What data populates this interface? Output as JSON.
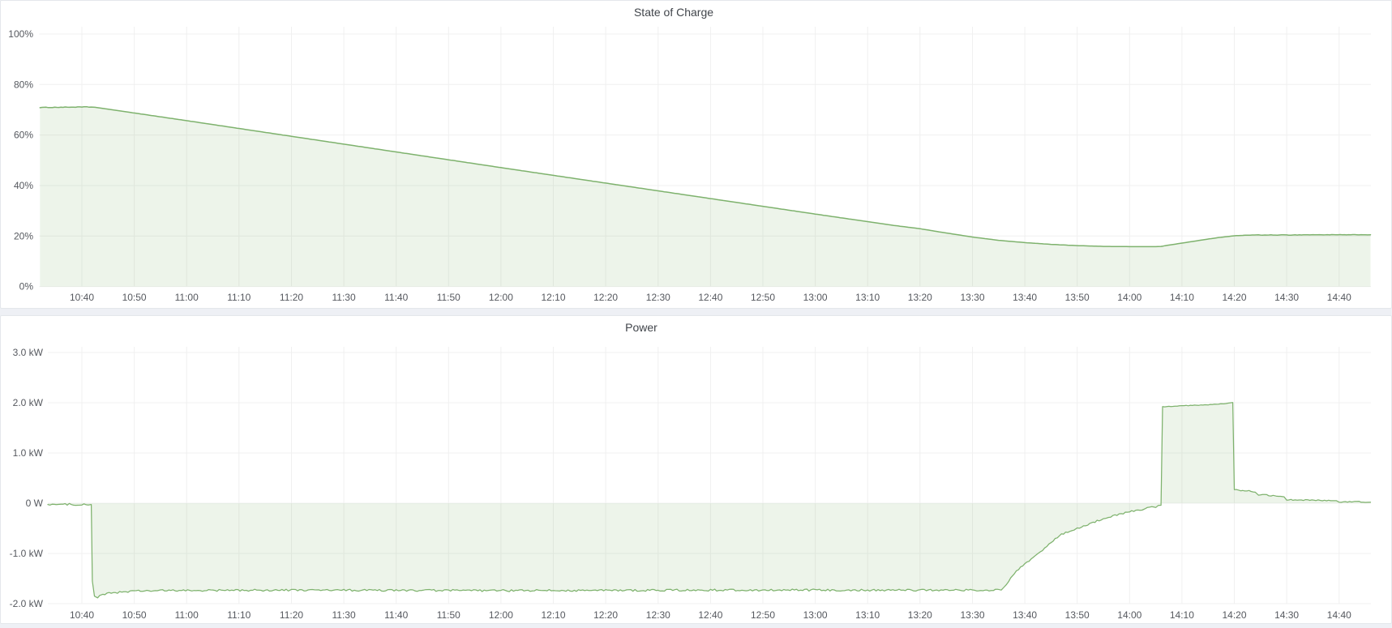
{
  "colors": {
    "line": "#7eb26d",
    "fill": "rgba(126,178,109,0.14)",
    "grid": "#f0f0f0",
    "tick_text": "#55585e",
    "title_text": "#41454b",
    "panel_bg": "#ffffff",
    "panel_border": "#e4e7eb",
    "page_bg": "#eef0f5"
  },
  "chart_data": [
    {
      "type": "area",
      "title": "State of Charge",
      "ylabel": "",
      "xlabel": "",
      "y_unit": "percent",
      "ylim": [
        0,
        103
      ],
      "x_range_minutes_after_10_00": [
        32,
        286
      ],
      "grid": true,
      "legend": "none",
      "y_ticks": [
        {
          "v": 100,
          "label": "100%"
        },
        {
          "v": 80,
          "label": "80%"
        },
        {
          "v": 60,
          "label": "60%"
        },
        {
          "v": 40,
          "label": "40%"
        },
        {
          "v": 20,
          "label": "20%"
        },
        {
          "v": 0,
          "label": "0%"
        }
      ],
      "x_ticks": [
        {
          "m": 40,
          "label": "10:40"
        },
        {
          "m": 50,
          "label": "10:50"
        },
        {
          "m": 60,
          "label": "11:00"
        },
        {
          "m": 70,
          "label": "11:10"
        },
        {
          "m": 80,
          "label": "11:20"
        },
        {
          "m": 90,
          "label": "11:30"
        },
        {
          "m": 100,
          "label": "11:40"
        },
        {
          "m": 110,
          "label": "11:50"
        },
        {
          "m": 120,
          "label": "12:00"
        },
        {
          "m": 130,
          "label": "12:10"
        },
        {
          "m": 140,
          "label": "12:20"
        },
        {
          "m": 150,
          "label": "12:30"
        },
        {
          "m": 160,
          "label": "12:40"
        },
        {
          "m": 170,
          "label": "12:50"
        },
        {
          "m": 180,
          "label": "13:00"
        },
        {
          "m": 190,
          "label": "13:10"
        },
        {
          "m": 200,
          "label": "13:20"
        },
        {
          "m": 210,
          "label": "13:30"
        },
        {
          "m": 220,
          "label": "13:40"
        },
        {
          "m": 230,
          "label": "13:50"
        },
        {
          "m": 240,
          "label": "14:00"
        },
        {
          "m": 250,
          "label": "14:10"
        },
        {
          "m": 260,
          "label": "14:20"
        },
        {
          "m": 270,
          "label": "14:30"
        },
        {
          "m": 280,
          "label": "14:40"
        }
      ],
      "series": [
        {
          "name": "State of Charge",
          "unit": "%",
          "color": "#7eb26d",
          "fill": "rgba(126,178,109,0.14)",
          "points": [
            [
              32,
              70.9
            ],
            [
              36,
              71.0
            ],
            [
              41,
              71.1
            ],
            [
              42.5,
              71.0
            ],
            [
              60,
              65.7
            ],
            [
              90,
              56.4
            ],
            [
              120,
              47.1
            ],
            [
              150,
              37.9
            ],
            [
              180,
              28.7
            ],
            [
              195,
              24.2
            ],
            [
              200,
              22.9
            ],
            [
              205,
              21.2
            ],
            [
              210,
              19.6
            ],
            [
              215,
              18.3
            ],
            [
              220,
              17.4
            ],
            [
              225,
              16.7
            ],
            [
              230,
              16.2
            ],
            [
              235,
              15.9
            ],
            [
              240,
              15.8
            ],
            [
              245,
              15.8
            ],
            [
              246,
              15.9
            ],
            [
              250,
              17.2
            ],
            [
              254,
              18.5
            ],
            [
              257,
              19.4
            ],
            [
              260,
              20.1
            ],
            [
              263,
              20.4
            ],
            [
              270,
              20.4
            ],
            [
              275,
              20.5
            ],
            [
              286,
              20.5
            ]
          ],
          "noise": [
            {
              "from": 32,
              "to": 42,
              "amp": 0.1
            },
            {
              "from": 263,
              "to": 286,
              "amp": 0.07
            }
          ]
        }
      ]
    },
    {
      "type": "area",
      "title": "Power",
      "ylabel": "",
      "xlabel": "",
      "y_unit": "kW",
      "ylim": [
        -2.1,
        3.1
      ],
      "x_range_minutes_after_10_00": [
        33.5,
        286
      ],
      "grid": true,
      "legend": "none",
      "y_ticks": [
        {
          "v": 3,
          "label": "3.0 kW"
        },
        {
          "v": 2,
          "label": "2.0 kW"
        },
        {
          "v": 1,
          "label": "1.0 kW"
        },
        {
          "v": 0,
          "label": "0 W"
        },
        {
          "v": -1,
          "label": "-1.0 kW"
        },
        {
          "v": -2,
          "label": "-2.0 kW"
        }
      ],
      "x_ticks": [
        {
          "m": 40,
          "label": "10:40"
        },
        {
          "m": 50,
          "label": "10:50"
        },
        {
          "m": 60,
          "label": "11:00"
        },
        {
          "m": 70,
          "label": "11:10"
        },
        {
          "m": 80,
          "label": "11:20"
        },
        {
          "m": 90,
          "label": "11:30"
        },
        {
          "m": 100,
          "label": "11:40"
        },
        {
          "m": 110,
          "label": "11:50"
        },
        {
          "m": 120,
          "label": "12:00"
        },
        {
          "m": 130,
          "label": "12:10"
        },
        {
          "m": 140,
          "label": "12:20"
        },
        {
          "m": 150,
          "label": "12:30"
        },
        {
          "m": 160,
          "label": "12:40"
        },
        {
          "m": 170,
          "label": "12:50"
        },
        {
          "m": 180,
          "label": "13:00"
        },
        {
          "m": 190,
          "label": "13:10"
        },
        {
          "m": 200,
          "label": "13:20"
        },
        {
          "m": 210,
          "label": "13:30"
        },
        {
          "m": 220,
          "label": "13:40"
        },
        {
          "m": 230,
          "label": "13:50"
        },
        {
          "m": 240,
          "label": "14:00"
        },
        {
          "m": 250,
          "label": "14:10"
        },
        {
          "m": 260,
          "label": "14:20"
        },
        {
          "m": 270,
          "label": "14:30"
        },
        {
          "m": 280,
          "label": "14:40"
        }
      ],
      "series": [
        {
          "name": "Power",
          "unit": "kW",
          "color": "#7eb26d",
          "fill": "rgba(126,178,109,0.14)",
          "points": [
            [
              33.5,
              -0.02
            ],
            [
              36,
              -0.03
            ],
            [
              38,
              -0.02
            ],
            [
              40,
              -0.03
            ],
            [
              41.8,
              -0.03
            ],
            [
              42.0,
              -1.55
            ],
            [
              42.4,
              -1.85
            ],
            [
              43,
              -1.87
            ],
            [
              44,
              -1.82
            ],
            [
              46,
              -1.78
            ],
            [
              50,
              -1.75
            ],
            [
              55,
              -1.74
            ],
            [
              80,
              -1.73
            ],
            [
              120,
              -1.74
            ],
            [
              160,
              -1.73
            ],
            [
              200,
              -1.73
            ],
            [
              215.5,
              -1.73
            ],
            [
              216.5,
              -1.62
            ],
            [
              218,
              -1.4
            ],
            [
              220,
              -1.21
            ],
            [
              223,
              -0.97
            ],
            [
              225,
              -0.78
            ],
            [
              227,
              -0.62
            ],
            [
              230,
              -0.51
            ],
            [
              233,
              -0.38
            ],
            [
              236,
              -0.28
            ],
            [
              238,
              -0.22
            ],
            [
              240,
              -0.17
            ],
            [
              243,
              -0.11
            ],
            [
              245.5,
              -0.06
            ],
            [
              246,
              -0.04
            ],
            [
              246.3,
              1.92
            ],
            [
              250,
              1.94
            ],
            [
              255,
              1.96
            ],
            [
              258,
              1.98
            ],
            [
              259.7,
              2.0
            ],
            [
              260,
              0.27
            ],
            [
              262,
              0.25
            ],
            [
              264,
              0.23
            ],
            [
              264.6,
              0.17
            ],
            [
              268,
              0.15
            ],
            [
              269.5,
              0.13
            ],
            [
              270,
              0.07
            ],
            [
              276,
              0.06
            ],
            [
              279.5,
              0.05
            ],
            [
              280,
              0.02
            ],
            [
              283,
              0.03
            ],
            [
              286,
              0.02
            ]
          ],
          "noise": [
            {
              "from": 33.5,
              "to": 41.8,
              "amp": 0.018
            },
            {
              "from": 43,
              "to": 215.5,
              "amp": 0.02
            },
            {
              "from": 216.5,
              "to": 245.5,
              "amp": 0.018
            },
            {
              "from": 246.3,
              "to": 259.7,
              "amp": 0.006
            },
            {
              "from": 260,
              "to": 286,
              "amp": 0.012
            }
          ]
        }
      ]
    }
  ]
}
